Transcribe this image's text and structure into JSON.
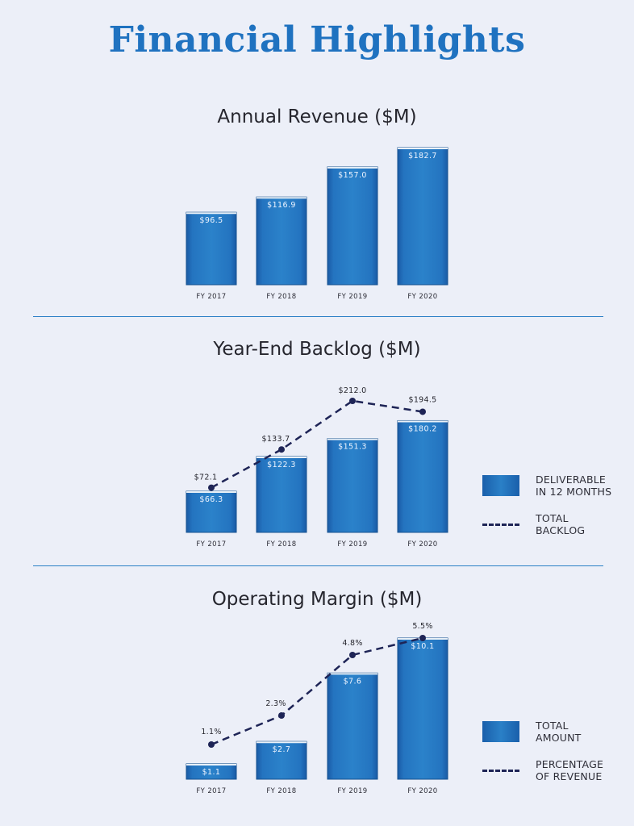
{
  "page_title": "Financial Highlights",
  "colors": {
    "title": "#1f72c0",
    "bar": "#2474c0",
    "line": "#1e2456",
    "divider": "#2a7fc6",
    "background": "#eceff8"
  },
  "chart_data": [
    {
      "type": "bar",
      "title": "Annual Revenue ($M)",
      "categories": [
        "FY 2017",
        "FY 2018",
        "FY 2019",
        "FY 2020"
      ],
      "values": [
        96.5,
        116.9,
        157.0,
        182.7
      ],
      "value_labels": [
        "$96.5",
        "$116.9",
        "$157.0",
        "$182.7"
      ],
      "xlabel": "",
      "ylabel": "",
      "ylim": [
        0,
        182.7
      ],
      "grid": false
    },
    {
      "type": "bar",
      "title": "Year-End Backlog ($M)",
      "categories": [
        "FY 2017",
        "FY 2018",
        "FY 2019",
        "FY 2020"
      ],
      "series": [
        {
          "name": "DELIVERABLE IN 12 MONTHS",
          "type": "bar",
          "values": [
            66.3,
            122.3,
            151.3,
            180.2
          ],
          "value_labels": [
            "$66.3",
            "$122.3",
            "$151.3",
            "$180.2"
          ]
        },
        {
          "name": "TOTAL BACKLOG",
          "type": "line",
          "values": [
            72.1,
            133.7,
            212.0,
            194.5
          ],
          "value_labels": [
            "$72.1",
            "$133.7",
            "$212.0",
            "$194.5"
          ]
        }
      ],
      "legend": [
        {
          "kind": "bar",
          "lines": [
            "DELIVERABLE",
            "IN 12 MONTHS"
          ]
        },
        {
          "kind": "line",
          "lines": [
            "TOTAL",
            "BACKLOG"
          ]
        }
      ],
      "legend_position": "right",
      "ylim": [
        0,
        212.0
      ],
      "grid": false
    },
    {
      "type": "bar",
      "title": "Operating Margin ($M)",
      "categories": [
        "FY 2017",
        "FY 2018",
        "FY 2019",
        "FY 2020"
      ],
      "series": [
        {
          "name": "TOTAL AMOUNT",
          "type": "bar",
          "values": [
            1.1,
            2.7,
            7.6,
            10.1
          ],
          "value_labels": [
            "$1.1",
            "$2.7",
            "$7.6",
            "$10.1"
          ]
        },
        {
          "name": "PERCENTAGE OF REVENUE",
          "type": "line",
          "unit": "%",
          "values": [
            1.1,
            2.3,
            4.8,
            5.5
          ],
          "value_labels": [
            "1.1%",
            "2.3%",
            "4.8%",
            "5.5%"
          ]
        }
      ],
      "legend": [
        {
          "kind": "bar",
          "lines": [
            "TOTAL",
            "AMOUNT"
          ]
        },
        {
          "kind": "line",
          "lines": [
            "PERCENTAGE",
            "OF REVENUE"
          ]
        }
      ],
      "legend_position": "right",
      "ylim": [
        0,
        10.1
      ],
      "grid": false
    }
  ]
}
